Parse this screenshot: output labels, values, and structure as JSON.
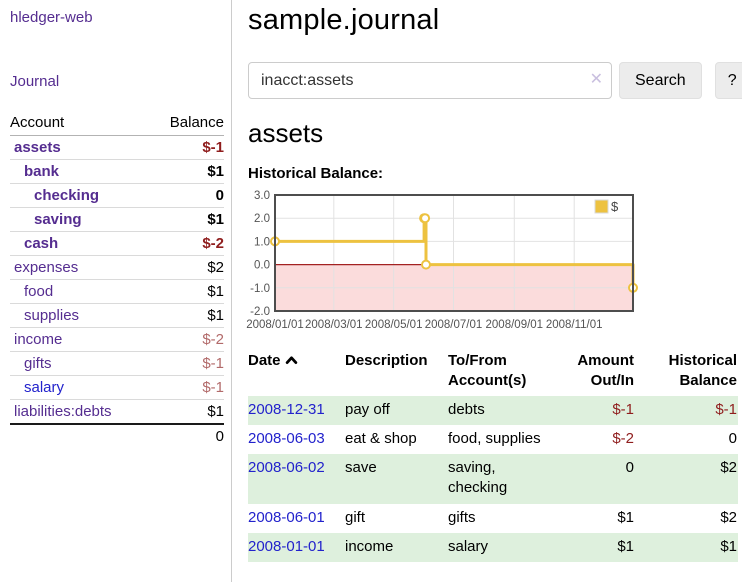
{
  "app": {
    "brand": "hledger-web",
    "nav_journal": "Journal"
  },
  "sidebar": {
    "col_account": "Account",
    "col_balance": "Balance",
    "accounts": [
      {
        "name": "assets",
        "depth": 0,
        "balance": "$-1",
        "bold": true,
        "balance_style": "neg-strong",
        "link_style": "purple"
      },
      {
        "name": "bank",
        "depth": 1,
        "balance": "$1",
        "bold": true,
        "balance_style": "pos",
        "link_style": "purple"
      },
      {
        "name": "checking",
        "depth": 2,
        "balance": "0",
        "bold": true,
        "balance_style": "pos",
        "link_style": "purple"
      },
      {
        "name": "saving",
        "depth": 2,
        "balance": "$1",
        "bold": true,
        "balance_style": "pos",
        "link_style": "purple"
      },
      {
        "name": "cash",
        "depth": 1,
        "balance": "$-2",
        "bold": true,
        "balance_style": "neg-strong",
        "link_style": "purple"
      },
      {
        "name": "expenses",
        "depth": 0,
        "balance": "$2",
        "bold": false,
        "balance_style": "pos",
        "link_style": "purple"
      },
      {
        "name": "food",
        "depth": 1,
        "balance": "$1",
        "bold": false,
        "balance_style": "pos",
        "link_style": "purple"
      },
      {
        "name": "supplies",
        "depth": 1,
        "balance": "$1",
        "bold": false,
        "balance_style": "pos",
        "link_style": "purple"
      },
      {
        "name": "income",
        "depth": 0,
        "balance": "$-2",
        "bold": false,
        "balance_style": "neg-soft",
        "link_style": "purple"
      },
      {
        "name": "gifts",
        "depth": 1,
        "balance": "$-1",
        "bold": false,
        "balance_style": "neg-soft",
        "link_style": "purple"
      },
      {
        "name": "salary",
        "depth": 1,
        "balance": "$-1",
        "bold": false,
        "balance_style": "neg-soft",
        "link_style": "blue"
      },
      {
        "name": "liabilities:debts",
        "depth": 0,
        "balance": "$1",
        "bold": false,
        "balance_style": "pos",
        "link_style": "purple"
      }
    ],
    "total": "0"
  },
  "header": {
    "title": "sample.journal"
  },
  "search": {
    "value": "inacct:assets",
    "clear_icon": "✕",
    "button": "Search",
    "help_button": "?"
  },
  "account_page": {
    "heading": "assets",
    "chart_label": "Historical Balance:"
  },
  "chart_data": {
    "type": "line",
    "step": true,
    "x_start": "2008-01-01",
    "x_end": "2008-12-31",
    "ylim": [
      -2,
      3
    ],
    "yticks": [
      "3.0",
      "2.0",
      "1.0",
      "0.0",
      "-1.0",
      "-2.0"
    ],
    "ytick_values": [
      3,
      2,
      1,
      0,
      -1,
      -2
    ],
    "xticks": [
      "2008/01/01",
      "2008/03/01",
      "2008/05/01",
      "2008/07/01",
      "2008/09/01",
      "2008/11/01"
    ],
    "series": [
      {
        "name": "$",
        "color": "#edc240",
        "points": [
          {
            "date": "2008-01-01",
            "value": 1
          },
          {
            "date": "2008-06-01",
            "value": 2
          },
          {
            "date": "2008-06-02",
            "value": 2
          },
          {
            "date": "2008-06-03",
            "value": 0
          },
          {
            "date": "2008-12-31",
            "value": -1
          }
        ]
      }
    ],
    "legend": {
      "label": "$",
      "position": "top-right"
    },
    "grid": {
      "border_color": "#4d4d4d",
      "line_color": "#e2e2e2",
      "negative_region_color": "#fbdcdc",
      "zero_line_color": "#a32222",
      "tick_text_color": "#545454"
    }
  },
  "register": {
    "col_date": "Date",
    "col_description": "Description",
    "col_accounts": "To/From Account(s)",
    "col_amount": "Amount Out/In",
    "col_balance": "Historical Balance",
    "rows": [
      {
        "date": "2008-12-31",
        "description": "pay off",
        "accounts": "debts",
        "amount": "$-1",
        "amount_neg": true,
        "balance": "$-1",
        "balance_neg": true,
        "shaded": true
      },
      {
        "date": "2008-06-03",
        "description": "eat & shop",
        "accounts": "food, supplies",
        "amount": "$-2",
        "amount_neg": true,
        "balance": "0",
        "balance_neg": false,
        "shaded": false
      },
      {
        "date": "2008-06-02",
        "description": "save",
        "accounts": "saving, checking",
        "amount": "0",
        "amount_neg": false,
        "balance": "$2",
        "balance_neg": false,
        "shaded": true
      },
      {
        "date": "2008-06-01",
        "description": "gift",
        "accounts": "gifts",
        "amount": "$1",
        "amount_neg": false,
        "balance": "$2",
        "balance_neg": false,
        "shaded": false
      },
      {
        "date": "2008-01-01",
        "description": "income",
        "accounts": "salary",
        "amount": "$1",
        "amount_neg": false,
        "balance": "$1",
        "balance_neg": false,
        "shaded": true
      }
    ]
  }
}
